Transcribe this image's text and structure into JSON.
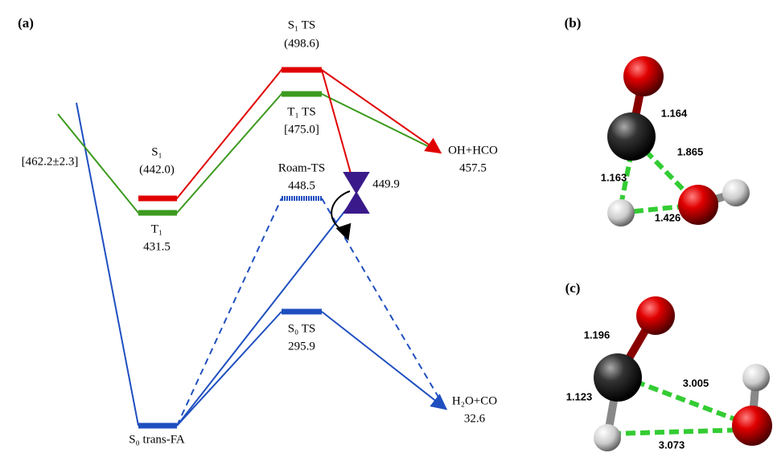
{
  "panel_a": {
    "label": "(a)",
    "s1_ts": {
      "name": "S₁ TS",
      "energy": "(498.6)"
    },
    "t1_ts": {
      "name": "T₁ TS",
      "energy": "[475.0]"
    },
    "s1": {
      "name": "S₁",
      "energy": "(442.0)"
    },
    "t1": {
      "name": "T₁",
      "energy": "431.5"
    },
    "threshold": "[462.2±2.3]",
    "roam_ts": {
      "name": "Roam-TS",
      "energy": "448.5"
    },
    "crossing": "449.9",
    "oh_hco": {
      "name": "OH+HCO",
      "energy": "457.5"
    },
    "s0_ts": {
      "name": "S₀ TS",
      "energy": "295.9"
    },
    "h2o_co": {
      "name": "H₂O+CO",
      "energy": "32.6"
    },
    "s0_fa": {
      "name": "S₀ trans-FA"
    }
  },
  "panel_b": {
    "label": "(b)",
    "bonds": [
      "1.164",
      "1.865",
      "1.163",
      "1.426"
    ]
  },
  "panel_c": {
    "label": "(c)",
    "bonds": [
      "1.196",
      "3.005",
      "1.123",
      "3.073"
    ]
  }
}
